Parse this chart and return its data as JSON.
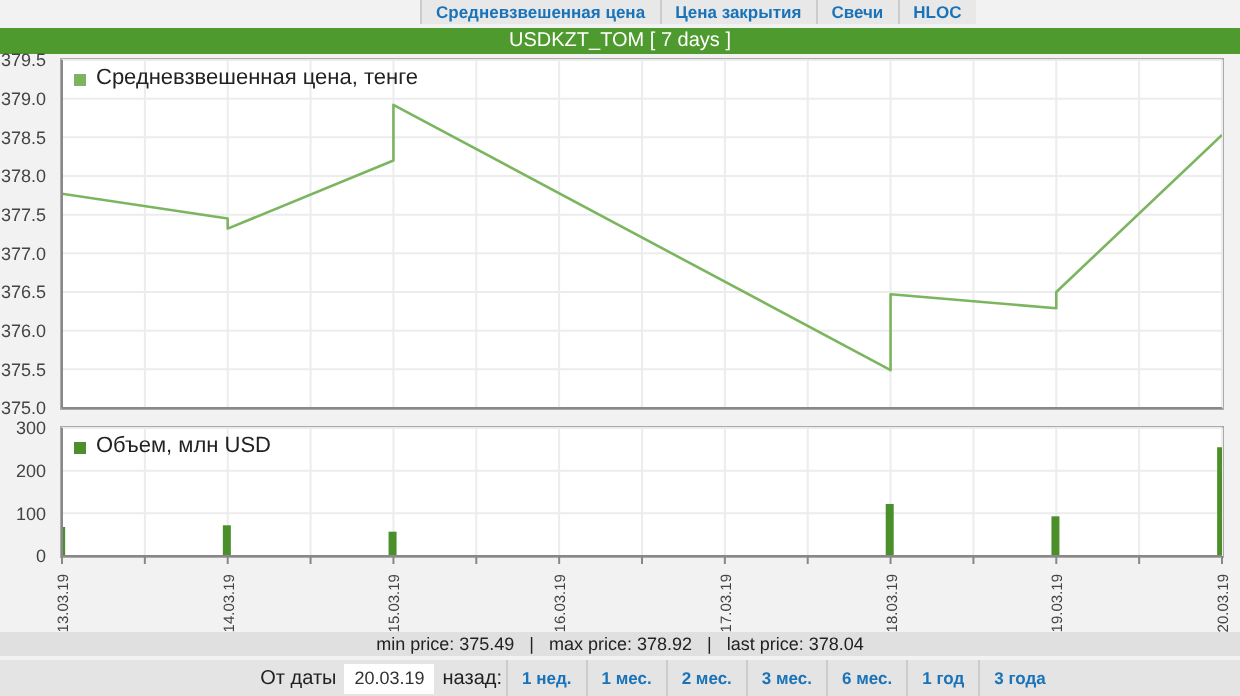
{
  "chart_data": [
    {
      "type": "line",
      "title": "USDKZT_TOM [ 7 days ]",
      "annotations": [
        "Средневзвешенная цена",
        "Цена закрытия",
        "Свечи",
        "HLOC"
      ],
      "x": [
        "--03-13",
        "--03-14",
        "--03-14",
        "--03-15",
        "--03-15",
        "--03-18",
        "--03-18",
        "--03-19",
        "--03-19",
        "--03-20"
      ],
      "series": [
        {
          "name": "Средневзвешенная цена, тенге",
          "color": "#7cb55f",
          "values": [
            377.77,
            377.45,
            377.32,
            378.2,
            378.92,
            375.49,
            376.47,
            376.29,
            376.5,
            378.53
          ]
        }
      ],
      "xlim": [
        "--03-13",
        "--03-20"
      ],
      "xticks": [
        "--03-13",
        "--03-13T12:00",
        "--03-14",
        "--03-14T12:00",
        "--03-15",
        "--03-15T12:00",
        "--03-16",
        "--03-16T12:00",
        "--03-17",
        "--03-17T12:00",
        "--03-18",
        "--03-18T12:00",
        "--03-19",
        "--03-19T12:00",
        "--03-20"
      ],
      "ylim": [
        375,
        379.5
      ],
      "yticks": [
        {
          "value": 375,
          "label": "375.0"
        },
        375.5,
        {
          "value": 376,
          "label": "376.0"
        },
        376.5,
        {
          "value": 377,
          "label": "377.0"
        },
        377.5,
        {
          "value": 378,
          "label": "378.0"
        },
        378.5,
        {
          "value": 379,
          "label": "379.0"
        },
        379.5
      ],
      "tick_labels": "y",
      "grid": true,
      "legend": "top left",
      "line_style": "solid"
    },
    {
      "type": "bar",
      "annotations": [
        "min price: 375.49   |   max price: 378.92   |   last price: 378.04",
        "От даты",
        "20.03.19",
        "назад:",
        "1 нед.",
        "1 мес.",
        "2 мес.",
        "3 мес.",
        "6 мес.",
        "1 год",
        "3 года"
      ],
      "x": [
        "--03-13",
        "--03-14",
        "--03-15",
        "--03-16",
        "--03-17",
        "--03-18",
        "--03-19",
        "--03-20"
      ],
      "series": [
        {
          "name": "Объем, млн USD",
          "color": "#4a8f2a",
          "values": [
            68,
            72,
            57,
            null,
            null,
            122,
            93,
            255
          ]
        }
      ],
      "xlim": [
        "--03-13",
        "--03-20"
      ],
      "xticks": [
        {
          "value": "--03-13",
          "label": "13.03.19"
        },
        {
          "value": "--03-13T12:00",
          "label": null
        },
        {
          "value": "--03-14",
          "label": "14.03.19"
        },
        {
          "value": "--03-14T12:00",
          "label": null
        },
        {
          "value": "--03-15",
          "label": "15.03.19"
        },
        {
          "value": "--03-15T12:00",
          "label": null
        },
        {
          "value": "--03-16",
          "label": "16.03.19"
        },
        {
          "value": "--03-16T12:00",
          "label": null
        },
        {
          "value": "--03-17",
          "label": "17.03.19"
        },
        {
          "value": "--03-17T12:00",
          "label": null
        },
        {
          "value": "--03-18",
          "label": "18.03.19"
        },
        {
          "value": "--03-18T12:00",
          "label": null
        },
        {
          "value": "--03-19",
          "label": "19.03.19"
        },
        {
          "value": "--03-19T12:00",
          "label": null
        },
        {
          "value": "--03-20",
          "label": "20.03.19"
        }
      ],
      "ylim": [
        0,
        300
      ],
      "yticks": [
        0,
        100,
        200,
        300
      ],
      "grid": true,
      "legend": "top left"
    }
  ]
}
